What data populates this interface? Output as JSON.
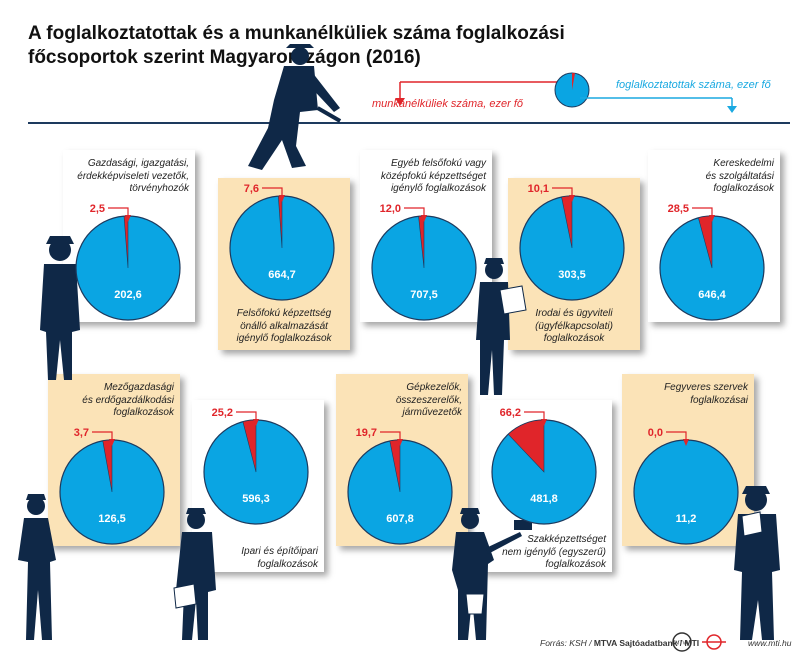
{
  "title": "A foglalkoztatottak és a munkanélküliek száma foglalkozási főcsoportok szerint Magyarországon (2016)",
  "legend": {
    "unemployed_label": "munkanélküliek száma, ezer fő",
    "employed_label": "foglalkoztatottak száma, ezer fő",
    "unemployed_color": "#e0252a",
    "employed_color": "#0aa5e3"
  },
  "footer": {
    "source_prefix": "Forrás: KSH / ",
    "source_bold": "MTVA Sajtóadatbank / MTI",
    "url": "www.mti.hu",
    "logo_text": "MTVA"
  },
  "chart_data": {
    "type": "pie",
    "unit": "ezer fő",
    "series_names": [
      "foglalkoztatottak száma",
      "munkanélküliek száma"
    ],
    "groups": [
      {
        "label": "Gazdasági, igazgatási, érdekképviseleti vezetők, törvényhozók",
        "employed": 202.6,
        "unemployed": 2.5
      },
      {
        "label": "Felsőfokú képzettség önálló alkalmazását igénylő foglalkozások",
        "employed": 664.7,
        "unemployed": 7.6
      },
      {
        "label": "Egyéb felsőfokú vagy középfokú képzettséget igénylő foglalkozások",
        "employed": 707.5,
        "unemployed": 12.0
      },
      {
        "label": "Irodai és ügyviteli (ügyfélkapcsolati) foglalkozások",
        "employed": 303.5,
        "unemployed": 10.1
      },
      {
        "label": "Kereskedelmi és szolgáltatási foglalkozások",
        "employed": 646.4,
        "unemployed": 28.5
      },
      {
        "label": "Mezőgazdasági és erdőgazdálkodási foglalkozások",
        "employed": 126.5,
        "unemployed": 3.7
      },
      {
        "label": "Ipari és építőipari foglalkozások",
        "employed": 596.3,
        "unemployed": 25.2
      },
      {
        "label": "Gépkezelők, összeszerelők, járművezetők",
        "employed": 607.8,
        "unemployed": 19.7
      },
      {
        "label": "Szakképzettséget nem igénylő (egyszerű) foglalkozások",
        "employed": 481.8,
        "unemployed": 66.2
      },
      {
        "label": "Fegyveres szervek foglalkozásai",
        "employed": 11.2,
        "unemployed": 0.0
      }
    ]
  },
  "panels": [
    {
      "label_lines": [
        "Gazdasági, igazgatási,",
        "érdekképviseleti vezetők,",
        "törvényhozók"
      ],
      "employed_text": "202,6",
      "unemployed_text": "2,5"
    },
    {
      "label_lines": [
        "Felsőfokú képzettség",
        "önálló alkalmazását",
        "igénylő foglalkozások"
      ],
      "employed_text": "664,7",
      "unemployed_text": "7,6"
    },
    {
      "label_lines": [
        "Egyéb felsőfokú vagy",
        "középfokú képzettséget",
        "igénylő foglalkozások"
      ],
      "employed_text": "707,5",
      "unemployed_text": "12,0"
    },
    {
      "label_lines": [
        "Irodai és ügyviteli",
        "(ügyfélkapcsolati)",
        "foglalkozások"
      ],
      "employed_text": "303,5",
      "unemployed_text": "10,1"
    },
    {
      "label_lines": [
        "Kereskedelmi",
        "és szolgáltatási",
        "foglalkozások"
      ],
      "employed_text": "646,4",
      "unemployed_text": "28,5"
    },
    {
      "label_lines": [
        "Mezőgazdasági",
        "és erdőgazdálkodási",
        "foglalkozások"
      ],
      "employed_text": "126,5",
      "unemployed_text": "3,7"
    },
    {
      "label_lines": [
        "Ipari és építőipari",
        "foglalkozások"
      ],
      "employed_text": "596,3",
      "unemployed_text": "25,2"
    },
    {
      "label_lines": [
        "Gépkezelők,",
        "összeszerelők,",
        "járművezetők"
      ],
      "employed_text": "607,8",
      "unemployed_text": "19,7"
    },
    {
      "label_lines": [
        "Szakképzettséget",
        "nem igénylő (egyszerű)",
        "foglalkozások"
      ],
      "employed_text": "481,8",
      "unemployed_text": "66,2"
    },
    {
      "label_lines": [
        "Fegyveres szervek",
        "foglalkozásai"
      ],
      "employed_text": "11,2",
      "unemployed_text": "0,0"
    }
  ]
}
